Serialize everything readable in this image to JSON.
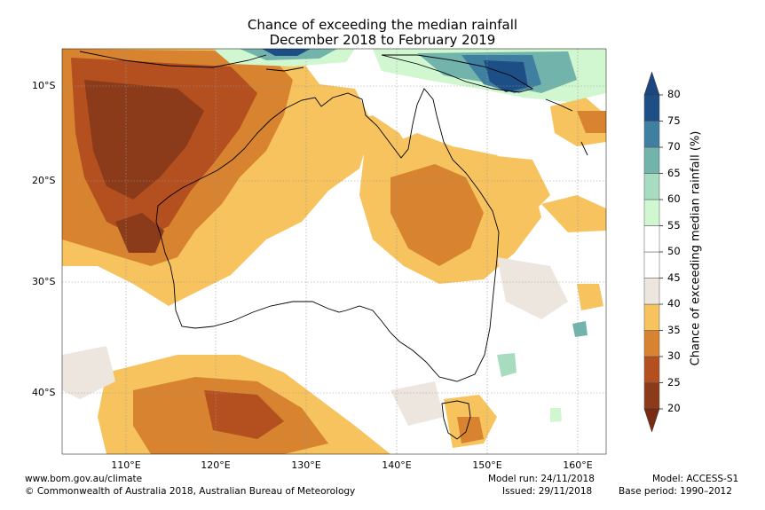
{
  "title": {
    "line1": "Chance of exceeding the median rainfall",
    "line2": "December 2018 to February 2019"
  },
  "map": {
    "lat_labels": [
      "10°S",
      "20°S",
      "30°S",
      "40°S"
    ],
    "lon_labels": [
      "110°E",
      "120°E",
      "130°E",
      "140°E",
      "150°E",
      "160°E"
    ],
    "gridlines": true
  },
  "colorbar": {
    "label": "Chance of exceeding median rainfall (%)",
    "ticks": [
      "20",
      "25",
      "30",
      "35",
      "40",
      "45",
      "50",
      "55",
      "60",
      "65",
      "70",
      "75",
      "80"
    ],
    "bands": [
      "#8b3a1a",
      "#b4501f",
      "#d7832f",
      "#f7c35e",
      "#ece6df",
      "#ffffff",
      "#ffffff",
      "#d0f7d0",
      "#a8dcc0",
      "#72b4ab",
      "#3f7fa0",
      "#1d4f86"
    ],
    "arrow_low": "#7a2a10",
    "arrow_high": "#1c4680"
  },
  "footer": {
    "website": "www.bom.gov.au/climate",
    "copyright": "© Commonwealth of Australia 2018, Australian Bureau of Meteorology",
    "model_run": "Model run: 24/11/2018",
    "issued": "Issued: 29/11/2018",
    "model": "Model: ACCESS-S1",
    "base_period": "Base period: 1990–2012"
  }
}
